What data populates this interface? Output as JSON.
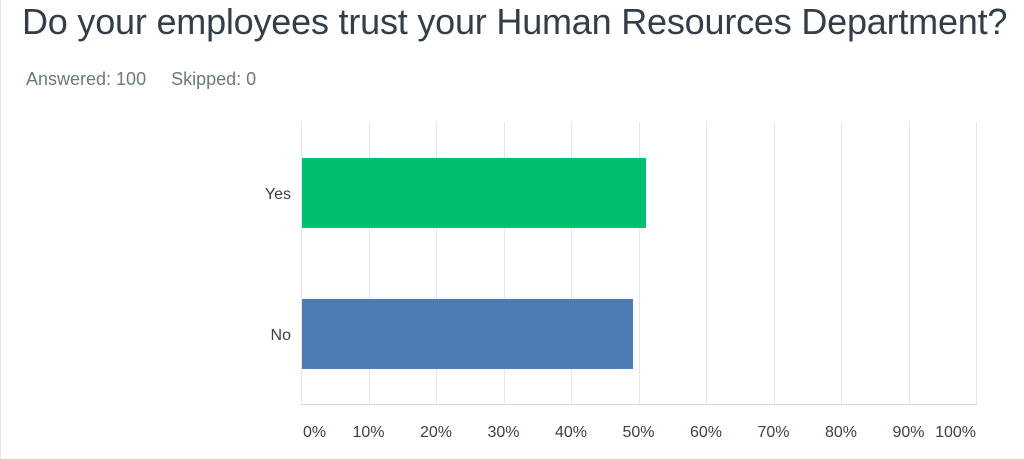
{
  "header": {
    "title": "Do your employees trust your Human Resources Department?",
    "answered": "Answered: 100",
    "skipped": "Skipped: 0"
  },
  "chart_data": {
    "type": "bar",
    "orientation": "horizontal",
    "title": "Do your employees trust your Human Resources Department?",
    "categories": [
      "Yes",
      "No"
    ],
    "series": [
      {
        "name": "Responses",
        "values": [
          51,
          49
        ]
      }
    ],
    "values_unit": "percent",
    "bar_colors": [
      "#00bf6f",
      "#4d7cb5"
    ],
    "x_ticks": [
      "0%",
      "10%",
      "20%",
      "30%",
      "40%",
      "50%",
      "60%",
      "70%",
      "80%",
      "90%",
      "100%"
    ],
    "xlim": [
      0,
      100
    ],
    "xlabel": "",
    "ylabel": "",
    "grid": true,
    "legend": false,
    "answered": 100,
    "skipped": 0
  }
}
